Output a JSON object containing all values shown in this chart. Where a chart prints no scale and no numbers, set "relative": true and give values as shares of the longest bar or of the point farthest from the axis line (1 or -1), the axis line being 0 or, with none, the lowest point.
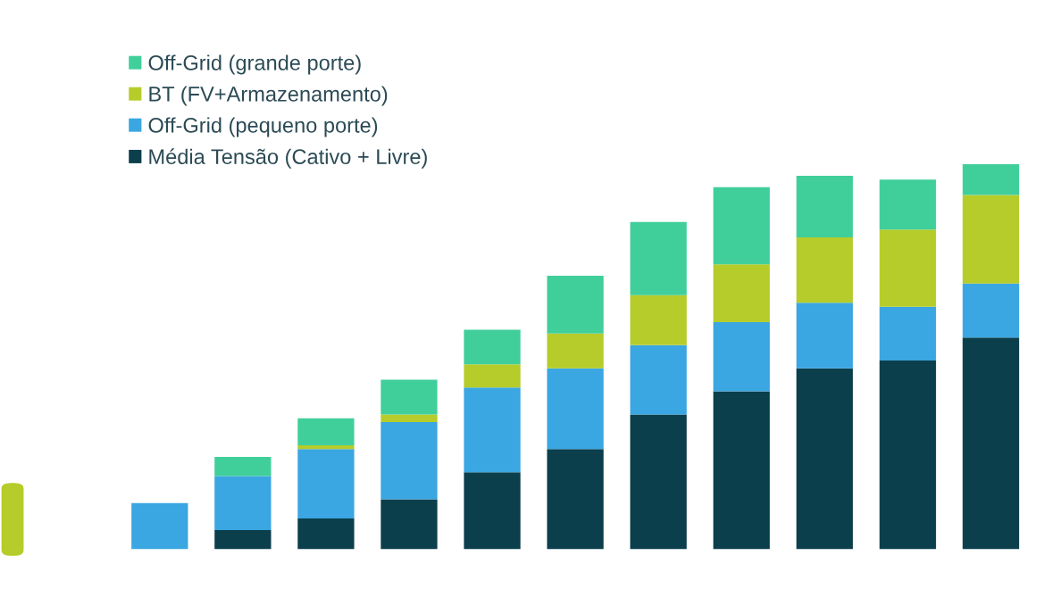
{
  "chart_data": {
    "type": "bar",
    "stacked": true,
    "relative": true,
    "legend": "top left",
    "categories": [
      null,
      null,
      null,
      null,
      null,
      null,
      null,
      null,
      null,
      null,
      null
    ],
    "series": [
      {
        "name": "Média Tensão (Cativo + Livre)",
        "color": "#0b3f4c",
        "values": [
          0,
          0.05,
          0.08,
          0.13,
          0.2,
          0.26,
          0.35,
          0.41,
          0.47,
          0.49,
          0.55
        ]
      },
      {
        "name": "Off-Grid (pequeno porte)",
        "color": "#3aa6e2",
        "values": [
          0.12,
          0.14,
          0.18,
          0.2,
          0.22,
          0.21,
          0.18,
          0.18,
          0.17,
          0.14,
          0.14
        ]
      },
      {
        "name": "BT (FV+Armazenamento)",
        "color": "#b6cc2a",
        "values": [
          0,
          0,
          0.01,
          0.02,
          0.06,
          0.09,
          0.13,
          0.15,
          0.17,
          0.2,
          0.23
        ]
      },
      {
        "name": "Off-Grid (grande porte)",
        "color": "#40cf9b",
        "values": [
          0,
          0.05,
          0.07,
          0.09,
          0.09,
          0.15,
          0.19,
          0.2,
          0.16,
          0.13,
          0.08
        ]
      }
    ]
  }
}
